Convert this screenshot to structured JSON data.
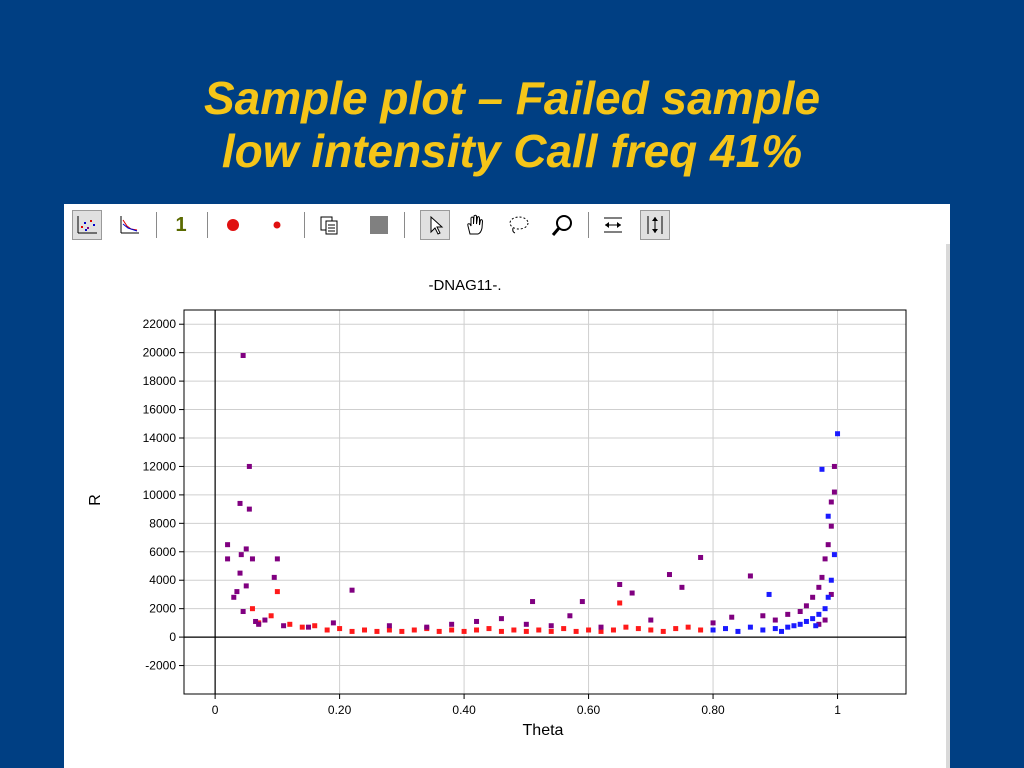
{
  "slide": {
    "title_line1": "Sample plot – Failed sample",
    "title_line2": "low intensity Call freq 41%"
  },
  "toolbar": {
    "items": [
      {
        "name": "scatter-plot-icon",
        "pressed": true
      },
      {
        "name": "axes-plot-icon"
      },
      {
        "name": "one-icon",
        "label": "1"
      },
      {
        "name": "large-dot-icon"
      },
      {
        "name": "small-dot-icon"
      },
      {
        "name": "copy-icon"
      },
      {
        "name": "stop-icon"
      },
      {
        "name": "pointer-icon",
        "pressed": true
      },
      {
        "name": "hand-icon"
      },
      {
        "name": "lasso-icon"
      },
      {
        "name": "zoom-icon"
      },
      {
        "name": "fit-horizontal-icon"
      },
      {
        "name": "fit-vertical-icon",
        "pressed": true
      }
    ]
  },
  "chart_data": {
    "type": "scatter",
    "title": "-DNAG11-.",
    "xlabel": "Theta",
    "ylabel": "R",
    "xlim": [
      -0.05,
      1.11
    ],
    "ylim": [
      -4000,
      23000
    ],
    "xticks": [
      0,
      0.2,
      0.4,
      0.6,
      0.8,
      1
    ],
    "xtick_labels": [
      "0",
      "0.20",
      "0.40",
      "0.60",
      "0.80",
      "1"
    ],
    "yticks": [
      -2000,
      0,
      2000,
      4000,
      6000,
      8000,
      10000,
      12000,
      14000,
      16000,
      18000,
      20000,
      22000
    ],
    "grid": true,
    "colors": {
      "red": "#ff1a1a",
      "purple": "#800080",
      "blue": "#1a1aff",
      "axis_line": "#000000",
      "grid": "#cfcfcf"
    },
    "series": [
      {
        "color": "red",
        "points": [
          [
            0.06,
            2000
          ],
          [
            0.07,
            1000
          ],
          [
            0.09,
            1500
          ],
          [
            0.1,
            3200
          ],
          [
            0.12,
            900
          ],
          [
            0.14,
            700
          ],
          [
            0.16,
            800
          ],
          [
            0.18,
            500
          ],
          [
            0.2,
            600
          ],
          [
            0.22,
            400
          ],
          [
            0.24,
            500
          ],
          [
            0.26,
            400
          ],
          [
            0.28,
            500
          ],
          [
            0.3,
            400
          ],
          [
            0.32,
            500
          ],
          [
            0.34,
            600
          ],
          [
            0.36,
            400
          ],
          [
            0.38,
            500
          ],
          [
            0.4,
            400
          ],
          [
            0.42,
            500
          ],
          [
            0.44,
            600
          ],
          [
            0.46,
            400
          ],
          [
            0.48,
            500
          ],
          [
            0.5,
            400
          ],
          [
            0.52,
            500
          ],
          [
            0.54,
            400
          ],
          [
            0.56,
            600
          ],
          [
            0.58,
            400
          ],
          [
            0.6,
            500
          ],
          [
            0.62,
            400
          ],
          [
            0.64,
            500
          ],
          [
            0.65,
            2400
          ],
          [
            0.66,
            700
          ],
          [
            0.68,
            600
          ],
          [
            0.7,
            500
          ],
          [
            0.72,
            400
          ],
          [
            0.74,
            600
          ],
          [
            0.76,
            700
          ],
          [
            0.78,
            500
          ]
        ]
      },
      {
        "color": "purple",
        "points": [
          [
            0.02,
            5500
          ],
          [
            0.02,
            6500
          ],
          [
            0.03,
            2800
          ],
          [
            0.035,
            3200
          ],
          [
            0.04,
            9400
          ],
          [
            0.04,
            4500
          ],
          [
            0.042,
            5800
          ],
          [
            0.045,
            19800
          ],
          [
            0.045,
            1800
          ],
          [
            0.05,
            6200
          ],
          [
            0.05,
            3600
          ],
          [
            0.055,
            12000
          ],
          [
            0.055,
            9000
          ],
          [
            0.06,
            5500
          ],
          [
            0.065,
            1100
          ],
          [
            0.07,
            900
          ],
          [
            0.08,
            1200
          ],
          [
            0.095,
            4200
          ],
          [
            0.1,
            5500
          ],
          [
            0.11,
            800
          ],
          [
            0.15,
            700
          ],
          [
            0.19,
            1000
          ],
          [
            0.22,
            3300
          ],
          [
            0.28,
            800
          ],
          [
            0.34,
            700
          ],
          [
            0.38,
            900
          ],
          [
            0.42,
            1100
          ],
          [
            0.46,
            1300
          ],
          [
            0.5,
            900
          ],
          [
            0.51,
            2500
          ],
          [
            0.54,
            800
          ],
          [
            0.57,
            1500
          ],
          [
            0.59,
            2500
          ],
          [
            0.62,
            700
          ],
          [
            0.65,
            3700
          ],
          [
            0.67,
            3100
          ],
          [
            0.7,
            1200
          ],
          [
            0.73,
            4400
          ],
          [
            0.75,
            3500
          ],
          [
            0.78,
            5600
          ],
          [
            0.8,
            1000
          ],
          [
            0.83,
            1400
          ],
          [
            0.86,
            4300
          ],
          [
            0.88,
            1500
          ],
          [
            0.9,
            1200
          ],
          [
            0.92,
            1600
          ],
          [
            0.94,
            1800
          ],
          [
            0.95,
            2200
          ],
          [
            0.96,
            2800
          ],
          [
            0.97,
            3500
          ],
          [
            0.975,
            4200
          ],
          [
            0.98,
            5500
          ],
          [
            0.985,
            6500
          ],
          [
            0.99,
            7800
          ],
          [
            0.99,
            9500
          ],
          [
            0.995,
            10200
          ],
          [
            0.995,
            12000
          ],
          [
            0.99,
            3000
          ],
          [
            0.98,
            1200
          ],
          [
            0.97,
            900
          ]
        ]
      },
      {
        "color": "blue",
        "points": [
          [
            0.8,
            500
          ],
          [
            0.82,
            600
          ],
          [
            0.84,
            400
          ],
          [
            0.86,
            700
          ],
          [
            0.88,
            500
          ],
          [
            0.89,
            3000
          ],
          [
            0.9,
            600
          ],
          [
            0.91,
            400
          ],
          [
            0.92,
            700
          ],
          [
            0.93,
            800
          ],
          [
            0.94,
            900
          ],
          [
            0.95,
            1100
          ],
          [
            0.96,
            1300
          ],
          [
            0.965,
            800
          ],
          [
            0.97,
            1600
          ],
          [
            0.975,
            11800
          ],
          [
            0.98,
            2000
          ],
          [
            0.985,
            2800
          ],
          [
            0.985,
            8500
          ],
          [
            0.99,
            4000
          ],
          [
            0.995,
            5800
          ],
          [
            1.0,
            14300
          ]
        ]
      }
    ]
  }
}
